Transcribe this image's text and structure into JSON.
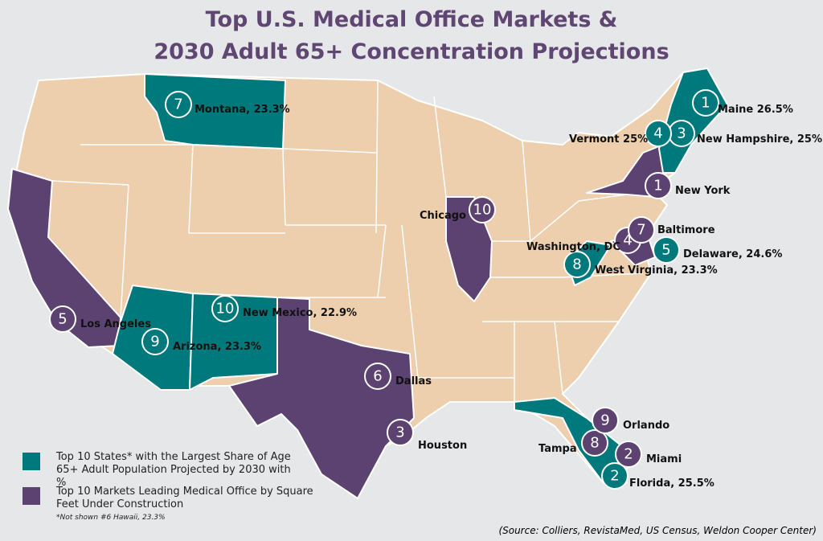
{
  "title": {
    "line1": "Top U.S. Medical Office Markets &",
    "line2": "2030 Adult 65+ Concentration Projections"
  },
  "colors": {
    "background": "#e6e7e8",
    "base_state": "#edcfae",
    "states_65plus": "#00797c",
    "markets": "#5c4270",
    "title": "#5f4673"
  },
  "states": [
    {
      "rank": "1",
      "label": "Maine 26.5%"
    },
    {
      "rank": "2",
      "label": "Florida, 25.5%"
    },
    {
      "rank": "3",
      "label": "New Hampshire, 25%"
    },
    {
      "rank": "4",
      "label": "Vermont 25%"
    },
    {
      "rank": "5",
      "label": "Delaware, 24.6%"
    },
    {
      "rank": "7",
      "label": "Montana, 23.3%"
    },
    {
      "rank": "8",
      "label": "West Virginia, 23.3%"
    },
    {
      "rank": "9",
      "label": "Arizona, 23.3%"
    },
    {
      "rank": "10",
      "label": "New Mexico, 22.9%"
    }
  ],
  "markets": [
    {
      "rank": "1",
      "label": "New York"
    },
    {
      "rank": "2",
      "label": "Miami"
    },
    {
      "rank": "3",
      "label": "Houston"
    },
    {
      "rank": "4",
      "label": "Washington, DC"
    },
    {
      "rank": "5",
      "label": "Los Angeles"
    },
    {
      "rank": "6",
      "label": "Dallas"
    },
    {
      "rank": "7",
      "label": "Baltimore"
    },
    {
      "rank": "8",
      "label": "Tampa"
    },
    {
      "rank": "9",
      "label": "Orlando"
    },
    {
      "rank": "10",
      "label": "Chicago"
    }
  ],
  "legend": {
    "states": "Top 10 States* with the Largest Share of Age 65+ Adult Population Projected by 2030 with %",
    "markets": "Top 10 Markets Leading Medical Office by Square Feet Under Construction",
    "note": "*Not shown #6 Hawaii, 23.3%"
  },
  "source": "(Source:   Colliers, RevistaMed, US Census, Weldon Cooper Center)"
}
